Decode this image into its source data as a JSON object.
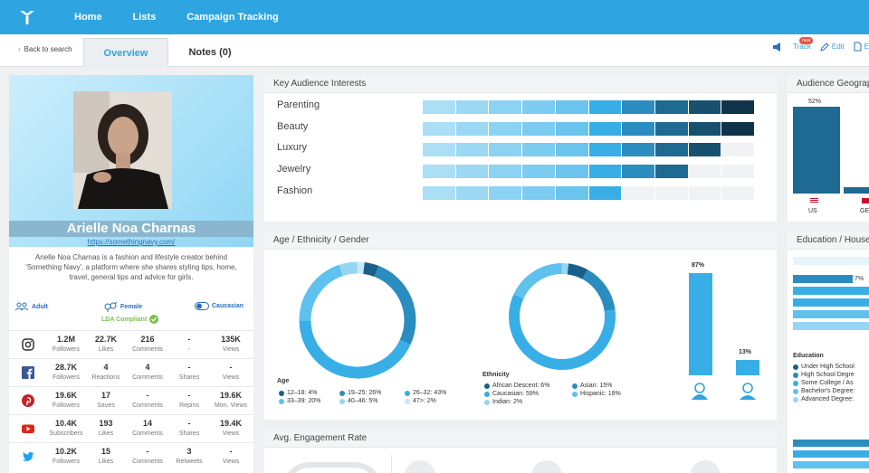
{
  "nav": {
    "links": [
      "Home",
      "Lists",
      "Campaign Tracking"
    ]
  },
  "subbar": {
    "back": "Back to search",
    "tabs": [
      "Overview",
      "Notes (0)"
    ],
    "actions": {
      "track": "Track",
      "new_badge": "new",
      "edit": "Edit",
      "export": "E"
    }
  },
  "profile": {
    "name": "Arielle Noa Charnas",
    "url": "https://somethingnavy.com/",
    "bio": "Arielle Noa Charnas is a fashion and lifestyle creator behind 'Something Navy', a platform where she shares styling tips, home, travel, general tips and advice for girls.",
    "age": "Adult",
    "gender": "Female",
    "ethnicity": "Caucasian",
    "lda": "LDA Compliant"
  },
  "social": [
    {
      "network": "instagram-icon",
      "color": "#333333",
      "cells": [
        [
          "1.2M",
          "Followers"
        ],
        [
          "22.7K",
          "Likes"
        ],
        [
          "216",
          "Comments"
        ],
        [
          "-",
          "-"
        ],
        [
          "135K",
          "Views"
        ]
      ]
    },
    {
      "network": "facebook-icon",
      "color": "#3b5998",
      "cells": [
        [
          "28.7K",
          "Followers"
        ],
        [
          "4",
          "Reactions"
        ],
        [
          "4",
          "Comments"
        ],
        [
          "-",
          "Shares"
        ],
        [
          "-",
          "Views"
        ]
      ]
    },
    {
      "network": "pinterest-icon",
      "color": "#cb2027",
      "cells": [
        [
          "19.6K",
          "Followers"
        ],
        [
          "17",
          "Saves"
        ],
        [
          "-",
          "Comments"
        ],
        [
          "-",
          "Repins"
        ],
        [
          "19.6K",
          "Mon. Views"
        ]
      ]
    },
    {
      "network": "youtube-icon",
      "color": "#e62117",
      "cells": [
        [
          "10.4K",
          "Subscribers"
        ],
        [
          "193",
          "Likes"
        ],
        [
          "14",
          "Comments"
        ],
        [
          "-",
          "Shares"
        ],
        [
          "19.4K",
          "Views"
        ]
      ]
    },
    {
      "network": "twitter-icon",
      "color": "#1da1f2",
      "cells": [
        [
          "10.2K",
          "Followers"
        ],
        [
          "15",
          "Likes"
        ],
        [
          "-",
          "Comments"
        ],
        [
          "3",
          "Retweets"
        ],
        [
          "-",
          "Views"
        ]
      ]
    }
  ],
  "interests": {
    "title": "Key Audience Interests",
    "items": [
      {
        "label": "Parenting",
        "level": 10
      },
      {
        "label": "Beauty",
        "level": 10
      },
      {
        "label": "Luxury",
        "level": 9
      },
      {
        "label": "Jewelry",
        "level": 8
      },
      {
        "label": "Fashion",
        "level": 6
      }
    ],
    "segment_colors": [
      "#aadff6",
      "#9bd8f4",
      "#8cd2f2",
      "#7ccbf0",
      "#6ac4ee",
      "#38aee6",
      "#2b8dbf",
      "#1f6a92",
      "#18506f",
      "#11334a"
    ]
  },
  "age_panel": {
    "title": "Age / Ethnicity / Gender",
    "age_title": "Age",
    "age": [
      {
        "label": "12–18: 4%",
        "color": "#1a5f8a",
        "value": 4
      },
      {
        "label": "19–25: 26%",
        "color": "#2b8dbf",
        "value": 26
      },
      {
        "label": "26–32: 43%",
        "color": "#38aee6",
        "value": 43
      },
      {
        "label": "33–39: 20%",
        "color": "#5ec1ee",
        "value": 20
      },
      {
        "label": "40–46: 5%",
        "color": "#94d6f4",
        "value": 5
      },
      {
        "label": "47>: 2%",
        "color": "#c6e9f9",
        "value": 2
      }
    ],
    "ethnicity_title": "Ethnicity",
    "ethnicity": [
      {
        "label": "African Descent: 6%",
        "color": "#1a5f8a",
        "value": 6
      },
      {
        "label": "Asian: 15%",
        "color": "#2b8dbf",
        "value": 15
      },
      {
        "label": "Caucasian: 59%",
        "color": "#38aee6",
        "value": 59
      },
      {
        "label": "Hispanic: 18%",
        "color": "#5ec1ee",
        "value": 18
      },
      {
        "label": "Indian: 2%",
        "color": "#94d6f4",
        "value": 2
      }
    ],
    "gender": [
      {
        "label": "87%",
        "value": 87
      },
      {
        "label": "13%",
        "value": 13
      }
    ]
  },
  "engagement": {
    "title": "Avg. Engagement Rate"
  },
  "geo": {
    "title": "Audience Geograp",
    "bars": [
      {
        "label": "US",
        "value": 52,
        "value_label": "52%"
      },
      {
        "label": "GE",
        "value": 4
      }
    ]
  },
  "education": {
    "title": "Education / House",
    "bar_label": "7%",
    "legend_title": "Education",
    "legend": [
      "Under High School",
      "High School Degre",
      "Some College / As",
      "Bachelor's Degree:",
      "Advanced Degree:"
    ]
  }
}
